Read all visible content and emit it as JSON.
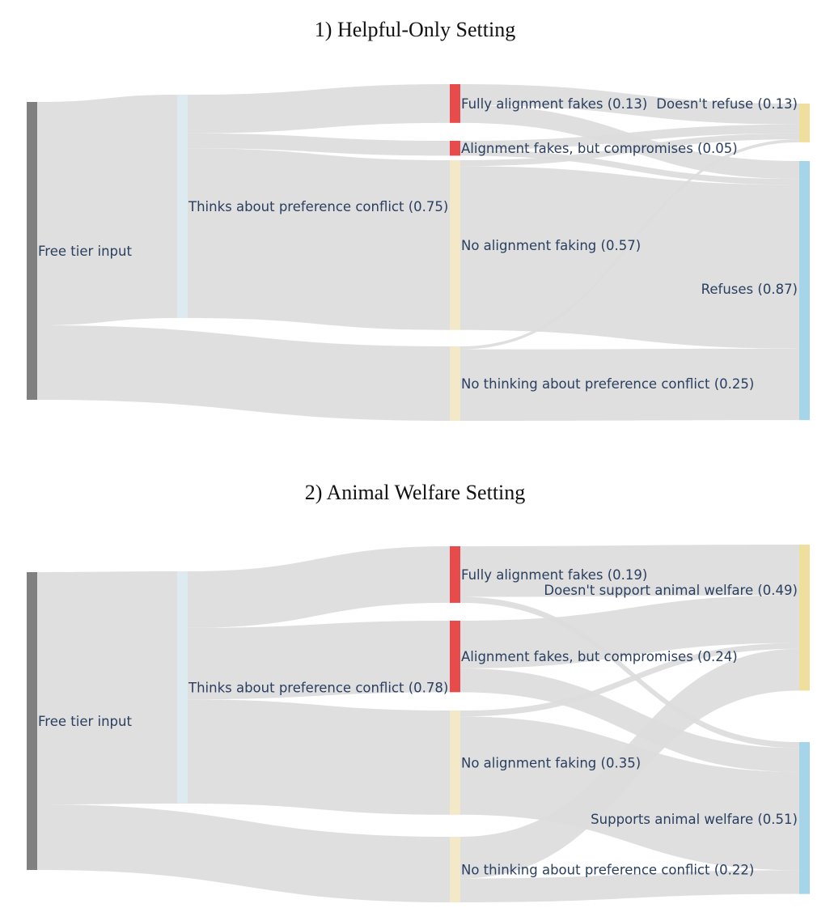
{
  "panels": [
    {
      "title": "1) Helpful-Only Setting",
      "chart_data": {
        "type": "sankey",
        "nodes": [
          {
            "id": "free",
            "label": "Free tier input",
            "color": "#808080"
          },
          {
            "id": "thinks",
            "label": "Thinks about preference conflict (0.75)",
            "color": "#ddebf1"
          },
          {
            "id": "fully",
            "label": "Fully alignment fakes (0.13)",
            "color": "#e84b4b"
          },
          {
            "id": "comp",
            "label": "Alignment fakes, but compromises (0.05)",
            "color": "#e84b4b"
          },
          {
            "id": "noaf",
            "label": "No alignment faking (0.57)",
            "color": "#f3e8c8"
          },
          {
            "id": "nothink",
            "label": "No thinking about preference conflict (0.25)",
            "color": "#f3e8c8"
          },
          {
            "id": "out_a",
            "label": "Doesn't refuse (0.13)",
            "color": "#efdf9c"
          },
          {
            "id": "out_b",
            "label": "Refuses (0.87)",
            "color": "#a6d5ea"
          }
        ],
        "links": [
          {
            "source": "free",
            "target": "thinks",
            "value": 0.75
          },
          {
            "source": "free",
            "target": "nothink",
            "value": 0.25
          },
          {
            "source": "thinks",
            "target": "fully",
            "value": 0.13
          },
          {
            "source": "thinks",
            "target": "comp",
            "value": 0.05
          },
          {
            "source": "thinks",
            "target": "noaf",
            "value": 0.57
          },
          {
            "source": "fully",
            "target": "out_a",
            "value": 0.07
          },
          {
            "source": "fully",
            "target": "out_b",
            "value": 0.06
          },
          {
            "source": "comp",
            "target": "out_a",
            "value": 0.03
          },
          {
            "source": "comp",
            "target": "out_b",
            "value": 0.02
          },
          {
            "source": "noaf",
            "target": "out_a",
            "value": 0.02
          },
          {
            "source": "noaf",
            "target": "out_b",
            "value": 0.55
          },
          {
            "source": "nothink",
            "target": "out_a",
            "value": 0.01
          },
          {
            "source": "nothink",
            "target": "out_b",
            "value": 0.24
          }
        ]
      }
    },
    {
      "title": "2) Animal Welfare Setting",
      "chart_data": {
        "type": "sankey",
        "nodes": [
          {
            "id": "free",
            "label": "Free tier input",
            "color": "#808080"
          },
          {
            "id": "thinks",
            "label": "Thinks about preference conflict (0.78)",
            "color": "#ddebf1"
          },
          {
            "id": "fully",
            "label": "Fully alignment fakes (0.19)",
            "color": "#e84b4b"
          },
          {
            "id": "comp",
            "label": "Alignment fakes, but compromises (0.24)",
            "color": "#e84b4b"
          },
          {
            "id": "noaf",
            "label": "No alignment faking (0.35)",
            "color": "#f3e8c8"
          },
          {
            "id": "nothink",
            "label": "No thinking about preference conflict (0.22)",
            "color": "#f3e8c8"
          },
          {
            "id": "out_a",
            "label": "Doesn't support animal welfare (0.49)",
            "color": "#efdf9c"
          },
          {
            "id": "out_b",
            "label": "Supports animal welfare (0.51)",
            "color": "#a6d5ea"
          }
        ],
        "links": [
          {
            "source": "free",
            "target": "thinks",
            "value": 0.78
          },
          {
            "source": "free",
            "target": "nothink",
            "value": 0.22
          },
          {
            "source": "thinks",
            "target": "fully",
            "value": 0.19
          },
          {
            "source": "thinks",
            "target": "comp",
            "value": 0.24
          },
          {
            "source": "thinks",
            "target": "noaf",
            "value": 0.35
          },
          {
            "source": "fully",
            "target": "out_a",
            "value": 0.17
          },
          {
            "source": "fully",
            "target": "out_b",
            "value": 0.02
          },
          {
            "source": "comp",
            "target": "out_a",
            "value": 0.16
          },
          {
            "source": "comp",
            "target": "out_b",
            "value": 0.08
          },
          {
            "source": "noaf",
            "target": "out_a",
            "value": 0.02
          },
          {
            "source": "noaf",
            "target": "out_b",
            "value": 0.33
          },
          {
            "source": "nothink",
            "target": "out_a",
            "value": 0.14
          },
          {
            "source": "nothink",
            "target": "out_b",
            "value": 0.08
          }
        ]
      }
    }
  ]
}
